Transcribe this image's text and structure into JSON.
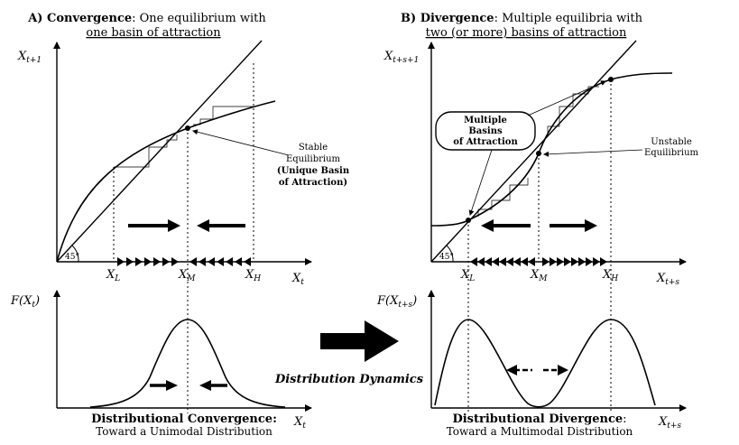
{
  "panel_a": {
    "title_bold": "A) Convergence",
    "title_rest": ": One equilibrium with",
    "title_line2": "one basin of attraction",
    "y_axis": "X",
    "y_axis_sub": "t+1",
    "x_axis": "X",
    "x_axis_sub": "t",
    "angle": "45°",
    "tick_l": "X",
    "tick_l_sub": "L",
    "tick_m": "X",
    "tick_m_sub": "M",
    "tick_h": "X",
    "tick_h_sub": "H",
    "ann_line1": "Stable",
    "ann_line2": "Equilibrium",
    "ann_line3": "(Unique Basin",
    "ann_line4": "of Attraction)"
  },
  "panel_b": {
    "title_bold": "B) Divergence",
    "title_rest": ": Multiple equilibria with",
    "title_line2": "two (or more) basins of attraction",
    "y_axis": "X",
    "y_axis_sub": "t+s+1",
    "x_axis": "X",
    "x_axis_sub": "t+s",
    "angle": "45°",
    "tick_l": "X",
    "tick_l_sub": "L",
    "tick_m": "X",
    "tick_m_sub": "M",
    "tick_h": "X",
    "tick_h_sub": "H",
    "callout_line1": "Multiple",
    "callout_line2": "Basins",
    "callout_line3": "of Attraction",
    "unstable_line1": "Unstable",
    "unstable_line2": "Equilibrium"
  },
  "dist_a": {
    "y_axis": "F(X",
    "y_axis_sub": "t",
    "y_axis_close": ")",
    "x_axis": "X",
    "x_axis_sub": "t",
    "caption_bold": "Distributional Convergence:",
    "caption_line2": "Toward a Unimodal Distribution"
  },
  "dist_b": {
    "y_axis": "F(X",
    "y_axis_sub": "t+s",
    "y_axis_close": ")",
    "x_axis": "X",
    "x_axis_sub": "t+s",
    "caption_bold": "Distributional Divergence",
    "caption_rest": ":",
    "caption_line2": "Toward a Multimodal Distribution"
  },
  "center": {
    "label": "Distribution Dynamics"
  }
}
